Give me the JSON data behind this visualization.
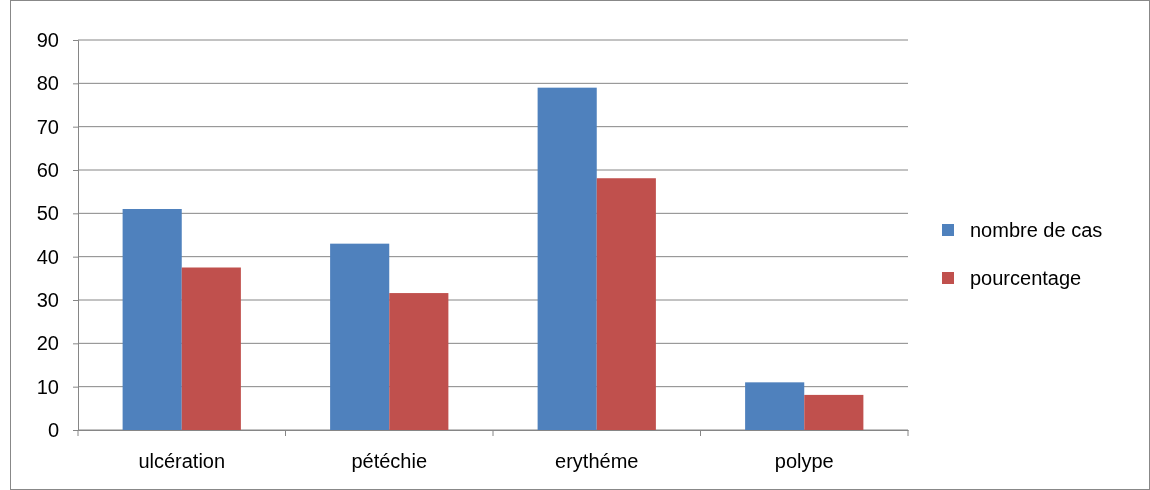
{
  "chart_data": {
    "type": "bar",
    "categories": [
      "ulcération",
      "pétéchie",
      "erythéme",
      "polype"
    ],
    "series": [
      {
        "name": "nombre de cas",
        "color": "#4f81bd",
        "values": [
          51,
          43,
          79,
          11
        ]
      },
      {
        "name": "pourcentage",
        "color": "#c0504d",
        "values": [
          37.5,
          31.6,
          58.1,
          8.1
        ]
      }
    ],
    "ylim": [
      0,
      90
    ],
    "yticks": [
      0,
      10,
      20,
      30,
      40,
      50,
      60,
      70,
      80,
      90
    ],
    "grid": "y",
    "legend": "right"
  }
}
